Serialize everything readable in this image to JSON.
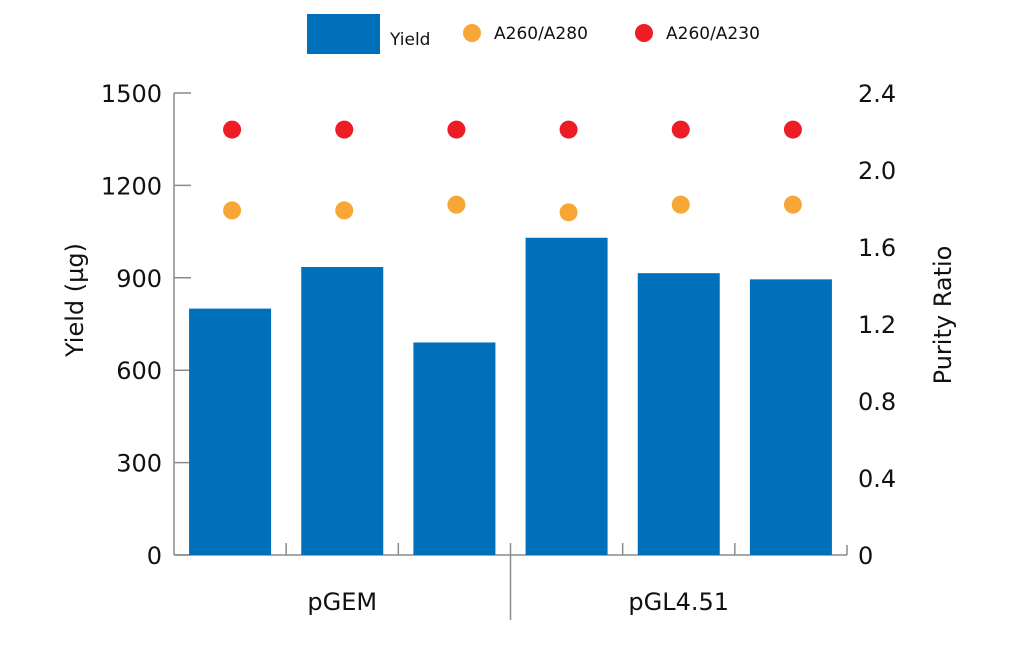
{
  "chart_data": {
    "type": "bar",
    "title": "",
    "categories": [
      "pGEM",
      "pGEM",
      "pGEM",
      "pGL4.51",
      "pGL4.51",
      "pGL4.51"
    ],
    "groups": [
      {
        "label": "pGEM",
        "bars": [
          0,
          1,
          2
        ]
      },
      {
        "label": "pGL4.51",
        "bars": [
          3,
          4,
          5
        ]
      }
    ],
    "series": [
      {
        "name": "Yield",
        "type": "bar",
        "axis": "left",
        "color": "#0070BB",
        "values": [
          800,
          935,
          690,
          1030,
          915,
          895
        ]
      },
      {
        "name": "A260/A280",
        "type": "scatter",
        "axis": "right",
        "color": "#F7A737",
        "values": [
          1.79,
          1.79,
          1.82,
          1.78,
          1.82,
          1.82
        ]
      },
      {
        "name": "A260/A230",
        "type": "scatter",
        "axis": "right",
        "color": "#EE1C25",
        "values": [
          2.21,
          2.21,
          2.21,
          2.21,
          2.21,
          2.21
        ]
      }
    ],
    "ylabel": "Yield (µg)",
    "ylim": [
      0,
      1500
    ],
    "yticks": [
      0,
      300,
      600,
      900,
      1200,
      1500
    ],
    "ytick_labels": [
      "0",
      "300",
      "600",
      "900",
      "1200",
      "1500"
    ],
    "y2label": "Purity Ratio",
    "y2lim": [
      0,
      2.4
    ],
    "y2ticks": [
      0,
      0.4,
      0.8,
      1.2,
      1.6,
      2.0,
      2.4
    ],
    "y2tick_labels": [
      "0",
      "0.4",
      "0.8",
      "1.2",
      "1.6",
      "2.0",
      "2.4"
    ],
    "xlabel": "",
    "grid": false,
    "legend": {
      "placement": "top-center",
      "entries": [
        {
          "label": "Yield",
          "marker": "rect",
          "color": "#0070BB"
        },
        {
          "label": "A260/A280",
          "marker": "circle",
          "color": "#F7A737"
        },
        {
          "label": "A260/A230",
          "marker": "circle",
          "color": "#EE1C25"
        }
      ]
    }
  }
}
